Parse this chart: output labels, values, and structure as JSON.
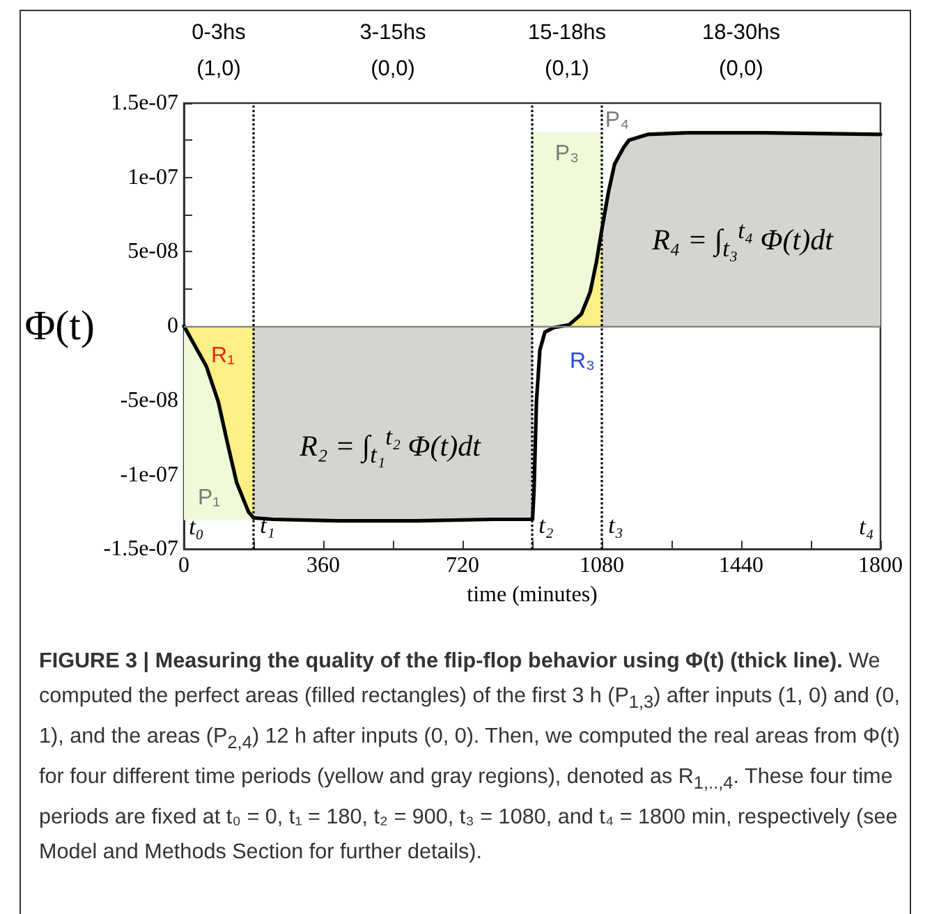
{
  "chart_data": {
    "type": "line",
    "title": "FIGURE 3 | Measuring the quality of the flip-flop behavior using Φ(t) (thick line).",
    "xlabel": "time (minutes)",
    "ylabel": "Φ(t)",
    "xlim": [
      0,
      1800
    ],
    "xticks": [
      0,
      {
        "value": 180,
        "label": null
      },
      360,
      {
        "value": 540,
        "label": null
      },
      720,
      {
        "value": 900,
        "label": null
      },
      1080,
      {
        "value": 1260,
        "label": null
      },
      1440,
      {
        "value": 1620,
        "label": null
      },
      1800
    ],
    "ylim": [
      -1.5e-07,
      1.5e-07
    ],
    "yticks": [
      {
        "value": -1.5e-07,
        "label": "-1.5e-07"
      },
      {
        "value": -1.25e-07,
        "label": null
      },
      {
        "value": -1e-07,
        "label": "-1e-07"
      },
      {
        "value": -7.5e-08,
        "label": null
      },
      {
        "value": -5e-08,
        "label": "-5e-08"
      },
      {
        "value": -2.5e-08,
        "label": null
      },
      {
        "value": 0,
        "label": "0"
      },
      {
        "value": 2.5e-08,
        "label": null
      },
      {
        "value": 5e-08,
        "label": "5e-08"
      },
      {
        "value": 7.5e-08,
        "label": null
      },
      {
        "value": 1e-07,
        "label": "1e-07"
      },
      {
        "value": 1.25e-07,
        "label": null
      },
      {
        "value": 1.5e-07,
        "label": "1.5e-07"
      }
    ],
    "grid": false,
    "marker": "none",
    "series": [
      {
        "type": "area",
        "color": "#eefad8",
        "x": [
          0,
          180
        ],
        "values": [
          -1.3e-07,
          -1.3e-07
        ]
      },
      {
        "type": "area",
        "color": "#eefad8",
        "x": [
          900,
          1080
        ],
        "values": [
          1.3e-07,
          1.3e-07
        ]
      },
      {
        "type": "area",
        "color": "#fcef86",
        "x": [
          0,
          58,
          89,
          112,
          136,
          167,
          180
        ],
        "values": [
          0,
          -2.7e-08,
          -5.1e-08,
          -7.8e-08,
          -1.05e-07,
          -1.25e-07,
          -1.29e-07
        ]
      },
      {
        "type": "area",
        "color": "#d4d4d0",
        "x": [
          180,
          230,
          400,
          600,
          800,
          901
        ],
        "values": [
          -1.29e-07,
          -1.3e-07,
          -1.31e-07,
          -1.31e-07,
          -1.3e-07,
          -1.3e-07
        ]
      },
      {
        "type": "area",
        "color": "#fcef86",
        "x": [
          956,
          995,
          1027,
          1050,
          1066,
          1080
        ],
        "values": [
          -1e-09,
          8e-10,
          8e-09,
          2.3e-08,
          4.3e-08,
          6.5e-08
        ]
      },
      {
        "type": "area",
        "color": "#d4d4d0",
        "x": [
          1080,
          1097,
          1113,
          1136,
          1150,
          1200,
          1300,
          1500,
          1800
        ],
        "values": [
          6.5e-08,
          9e-08,
          1.09e-07,
          1.2e-07,
          1.25e-07,
          1.29e-07,
          1.3e-07,
          1.3e-07,
          1.29e-07
        ]
      },
      {
        "type": "line",
        "color": "#000000",
        "x": [
          0,
          58,
          89,
          112,
          136,
          167,
          180,
          230,
          400,
          600,
          800,
          901,
          905,
          911,
          920,
          933,
          956,
          995,
          1027,
          1050,
          1066,
          1080,
          1097,
          1113,
          1136,
          1150,
          1200,
          1300,
          1500,
          1800
        ],
        "values": [
          0,
          -2.7e-08,
          -5.1e-08,
          -7.8e-08,
          -1.05e-07,
          -1.25e-07,
          -1.29e-07,
          -1.3e-07,
          -1.31e-07,
          -1.31e-07,
          -1.3e-07,
          -1.3e-07,
          -1.09e-07,
          -5.1e-08,
          -1.6e-08,
          -4e-09,
          -1e-09,
          8e-10,
          8e-09,
          2.3e-08,
          4.3e-08,
          6.5e-08,
          9e-08,
          1.09e-07,
          1.2e-07,
          1.25e-07,
          1.29e-07,
          1.3e-07,
          1.3e-07,
          1.29e-07
        ]
      }
    ],
    "ref_lines": [
      {
        "axis": "y",
        "value": 0,
        "color": "#888888",
        "line_style": "solid"
      },
      {
        "axis": "x",
        "value": 180,
        "label": "t₁",
        "color": "#000000",
        "line_style": "dotted"
      },
      {
        "axis": "x",
        "value": 900,
        "label": "t₂",
        "color": "#000000",
        "line_style": "dotted"
      },
      {
        "axis": "x",
        "value": 1080,
        "label": "t₃",
        "color": "#000000",
        "line_style": "dotted"
      }
    ],
    "annotations": [
      "0-3hs\n(1,0)",
      "3-15hs\n(0,0)",
      "15-18hs\n(0,1)",
      "18-30hs\n(0,0)",
      "R₁",
      "P₁",
      "R₃",
      "P₃",
      "P₄",
      "R₂ = ∫$_{t₁}$$^{t₂}$ Φ(t)dt",
      "R₄ = ∫$_{t₃}$$^{t₄}$ Φ(t)dt",
      "t₀",
      "t₄",
      "We computed the perfect areas (filled rectangles) of the first 3 h (P$_{1,3}$) after inputs (1, 0) and (0, 1), and the areas (P$_{2,4}$) 12 h after inputs (0, 0). Then, we computed the real areas from Φ(t) for four different time periods (yellow and gray regions), denoted as R$_{1,..,4}$. These four time periods are fixed at t₀ = 0, t₁ = 180, t₂ = 900, t₃ = 1080, and t₄ = 1800 min, respectively (see Model and Methods Section for further details)."
    ]
  }
}
